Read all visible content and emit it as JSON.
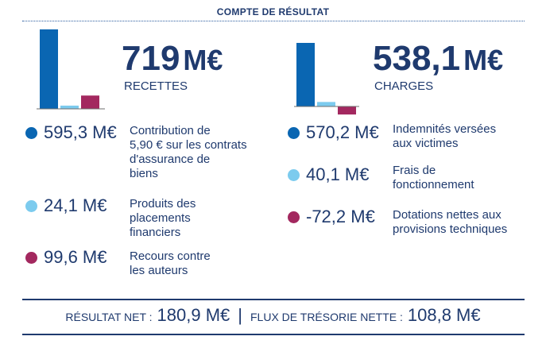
{
  "title": "COMPTE DE RÉSULTAT",
  "colors": {
    "dark_blue": "#0a66b2",
    "light_blue": "#7ccbee",
    "crimson": "#a3285f",
    "text": "#1f3a6e"
  },
  "recettes": {
    "amount": "719",
    "unit": "M€",
    "label": "RECETTES"
  },
  "charges": {
    "amount": "538,1",
    "unit": "M€",
    "label": "CHARGES"
  },
  "chart_data": [
    {
      "type": "bar",
      "categories": [
        "Contribution de 5,90 € sur les contrats d'assurance de biens",
        "Produits des placements financiers",
        "Recours contre les auteurs"
      ],
      "values": [
        595.3,
        24.1,
        99.6
      ],
      "colors": [
        "#0a66b2",
        "#7ccbee",
        "#a3285f"
      ],
      "ylim": [
        0,
        600
      ],
      "grid": false
    },
    {
      "type": "bar",
      "categories": [
        "Indemnités versées aux victimes",
        "Frais de fonctionnement",
        "Dotations nettes aux provisions techniques"
      ],
      "values": [
        570.2,
        40.1,
        -72.2
      ],
      "colors": [
        "#0a66b2",
        "#7ccbee",
        "#a3285f"
      ],
      "ylim": [
        -100,
        600
      ],
      "grid": false
    }
  ],
  "left_items": [
    {
      "value": "595,3 M€",
      "lines": [
        "Contribution de",
        "5,90 € sur les contrats",
        "d'assurance de",
        "biens"
      ]
    },
    {
      "value": "24,1 M€",
      "lines": [
        "Produits des",
        "placements",
        "financiers"
      ]
    },
    {
      "value": "99,6 M€",
      "lines": [
        "Recours contre",
        "les auteurs"
      ]
    }
  ],
  "right_items": [
    {
      "value": "570,2 M€",
      "lines": [
        "Indemnités versées",
        "aux victimes"
      ]
    },
    {
      "value": "40,1 M€",
      "lines": [
        "Frais de",
        "fonctionnement"
      ]
    },
    {
      "value": "-72,2 M€",
      "lines": [
        "Dotations nettes aux",
        "provisions techniques"
      ]
    }
  ],
  "footer": {
    "resultat_label": "RÉSULTAT NET :",
    "resultat_value": "180,9 M€",
    "separator": "|",
    "flux_label": "FLUX DE TRÉSORIE NETTE :",
    "flux_value": "108,8 M€"
  }
}
